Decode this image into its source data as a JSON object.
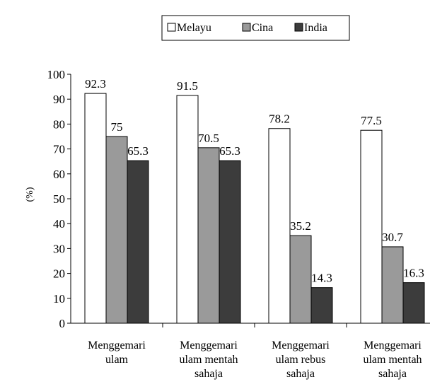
{
  "chart_data": {
    "type": "bar",
    "title": "",
    "xlabel": "",
    "ylabel": "(%)",
    "ylim": [
      0,
      100
    ],
    "yticks": [
      0,
      10,
      20,
      30,
      40,
      50,
      60,
      70,
      80,
      90,
      100
    ],
    "grid": false,
    "legend_position": "top-center",
    "categories": [
      [
        "Menggemari",
        "ulam"
      ],
      [
        "Menggemari",
        "ulam mentah",
        "sahaja"
      ],
      [
        "Menggemari",
        "ulam rebus",
        "sahaja"
      ],
      [
        "Menggemari",
        "ulam mentah",
        "sahaja"
      ]
    ],
    "series": [
      {
        "name": "Melayu",
        "color": "#ffffff",
        "values": [
          92.3,
          91.5,
          78.2,
          77.5
        ],
        "labels": [
          "92.3",
          "91.5",
          "78.2",
          "77.5"
        ]
      },
      {
        "name": "Cina",
        "color": "#9a9a9a",
        "values": [
          75,
          70.5,
          35.2,
          30.7
        ],
        "labels": [
          "75",
          "70.5",
          "35.2",
          "30.7"
        ]
      },
      {
        "name": "India",
        "color": "#3c3c3c",
        "values": [
          65.3,
          65.3,
          14.3,
          16.3
        ],
        "labels": [
          "65.3",
          "65.3",
          "14.3",
          "16.3"
        ]
      }
    ]
  }
}
